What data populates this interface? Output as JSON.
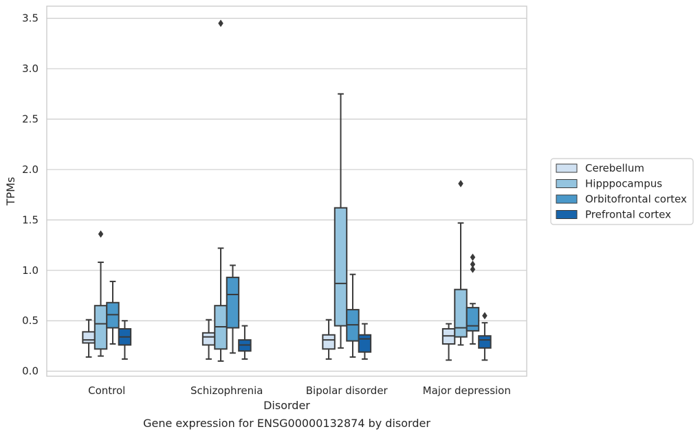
{
  "caption": "Gene expression for ENSG00000132874 by disorder",
  "chart_data": {
    "type": "box",
    "xlabel": "Disorder",
    "ylabel": "TPMs",
    "ylim": [
      -0.05,
      3.62
    ],
    "yticks": [
      "0.0",
      "0.5",
      "1.0",
      "1.5",
      "2.0",
      "2.5",
      "3.0",
      "3.5"
    ],
    "grid": "horizontal",
    "legend_position": "right",
    "categories": [
      "Control",
      "Schizophrenia",
      "Bipolar disorder",
      "Major depression"
    ],
    "series": [
      {
        "name": "Cerebellum",
        "color": "#d0e1f2",
        "boxes": [
          {
            "whislo": 0.14,
            "q1": 0.28,
            "med": 0.31,
            "q3": 0.39,
            "whishi": 0.51,
            "fliers": []
          },
          {
            "whislo": 0.12,
            "q1": 0.26,
            "med": 0.34,
            "q3": 0.38,
            "whishi": 0.51,
            "fliers": []
          },
          {
            "whislo": 0.12,
            "q1": 0.22,
            "med": 0.31,
            "q3": 0.36,
            "whishi": 0.51,
            "fliers": []
          },
          {
            "whislo": 0.11,
            "q1": 0.27,
            "med": 0.35,
            "q3": 0.42,
            "whishi": 0.47,
            "fliers": []
          }
        ]
      },
      {
        "name": "Hipppocampus",
        "color": "#94c4df",
        "boxes": [
          {
            "whislo": 0.15,
            "q1": 0.22,
            "med": 0.47,
            "q3": 0.65,
            "whishi": 1.08,
            "fliers": [
              1.36
            ]
          },
          {
            "whislo": 0.1,
            "q1": 0.22,
            "med": 0.44,
            "q3": 0.65,
            "whishi": 1.22,
            "fliers": [
              3.45
            ]
          },
          {
            "whislo": 0.23,
            "q1": 0.45,
            "med": 0.87,
            "q3": 1.62,
            "whishi": 2.75,
            "fliers": []
          },
          {
            "whislo": 0.26,
            "q1": 0.34,
            "med": 0.43,
            "q3": 0.81,
            "whishi": 1.47,
            "fliers": [
              1.86
            ]
          }
        ]
      },
      {
        "name": "Orbitofrontal cortex",
        "color": "#4a98c9",
        "boxes": [
          {
            "whislo": 0.27,
            "q1": 0.43,
            "med": 0.56,
            "q3": 0.68,
            "whishi": 0.89,
            "fliers": []
          },
          {
            "whislo": 0.18,
            "q1": 0.43,
            "med": 0.76,
            "q3": 0.93,
            "whishi": 1.05,
            "fliers": []
          },
          {
            "whislo": 0.14,
            "q1": 0.3,
            "med": 0.46,
            "q3": 0.61,
            "whishi": 0.96,
            "fliers": []
          },
          {
            "whislo": 0.27,
            "q1": 0.4,
            "med": 0.45,
            "q3": 0.63,
            "whishi": 0.67,
            "fliers": [
              1.13,
              1.06,
              1.01
            ]
          }
        ]
      },
      {
        "name": "Prefrontal cortex",
        "color": "#1764ab",
        "boxes": [
          {
            "whislo": 0.12,
            "q1": 0.26,
            "med": 0.34,
            "q3": 0.42,
            "whishi": 0.5,
            "fliers": []
          },
          {
            "whislo": 0.12,
            "q1": 0.2,
            "med": 0.26,
            "q3": 0.31,
            "whishi": 0.45,
            "fliers": []
          },
          {
            "whislo": 0.12,
            "q1": 0.19,
            "med": 0.32,
            "q3": 0.36,
            "whishi": 0.47,
            "fliers": []
          },
          {
            "whislo": 0.11,
            "q1": 0.23,
            "med": 0.31,
            "q3": 0.35,
            "whishi": 0.48,
            "fliers": [
              0.55
            ]
          }
        ]
      }
    ]
  }
}
